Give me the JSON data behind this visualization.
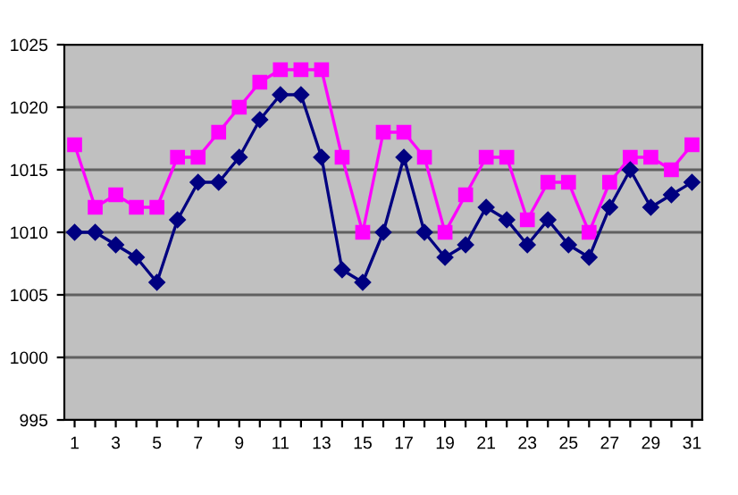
{
  "chart_data": {
    "type": "line",
    "categories": [
      "1",
      null,
      "3",
      null,
      "5",
      null,
      "7",
      null,
      "9",
      null,
      "11",
      null,
      "13",
      null,
      "15",
      null,
      "17",
      null,
      "19",
      null,
      "21",
      null,
      "23",
      null,
      "25",
      null,
      "27",
      null,
      "29",
      null,
      "31"
    ],
    "series": [
      {
        "color": "#ff00ff",
        "marker": "square",
        "values": [
          1017,
          1012,
          1013,
          1012,
          1012,
          1016,
          1016,
          1018,
          1020,
          1022,
          1023,
          1023,
          1023,
          1016,
          1010,
          1018,
          1018,
          1016,
          1010,
          1013,
          1016,
          1016,
          1011,
          1014,
          1014,
          1010,
          1014,
          1016,
          1016,
          1015,
          1017
        ]
      },
      {
        "color": "#000080",
        "marker": "diamond",
        "values": [
          1010,
          1010,
          1009,
          1008,
          1006,
          1011,
          1014,
          1014,
          1016,
          1019,
          1021,
          1021,
          1016,
          1007,
          1006,
          1010,
          1016,
          1010,
          1008,
          1009,
          1012,
          1011,
          1009,
          1011,
          1009,
          1008,
          1012,
          1015,
          1012,
          1013,
          1014
        ]
      }
    ],
    "ylim": [
      995,
      1025
    ],
    "yticks": [
      995,
      1000,
      1005,
      1010,
      1015,
      1020,
      1025
    ],
    "grid": "y",
    "legend": false
  }
}
